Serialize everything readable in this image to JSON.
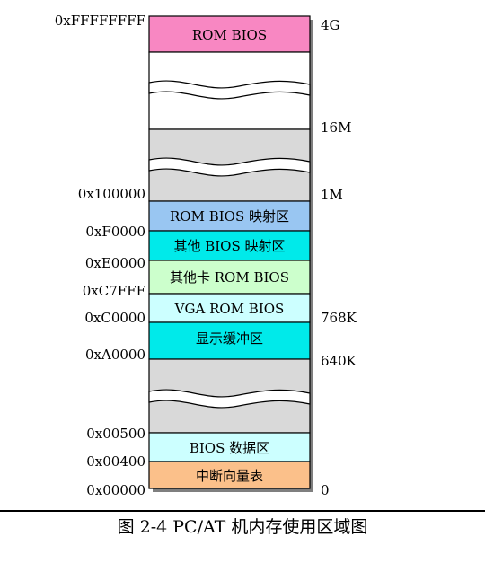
{
  "addresses": {
    "top": "0xFFFFFFFF",
    "a100000": "0x100000",
    "aF0000": "0xF0000",
    "aE0000": "0xE0000",
    "aC7FFF": "0xC7FFF",
    "aC0000": "0xC0000",
    "aA0000": "0xA0000",
    "a00500": "0x00500",
    "a00400": "0x00400",
    "a00000": "0x00000"
  },
  "sizes": {
    "s4G": "4G",
    "s16M": "16M",
    "s1M": "1M",
    "s768K": "768K",
    "s640K": "640K",
    "s0": "0"
  },
  "segments": {
    "rom_bios": "ROM BIOS",
    "rom_bios_map": "ROM BIOS 映射区",
    "other_bios_map": "其他 BIOS 映射区",
    "other_card_rom": "其他卡 ROM BIOS",
    "vga_rom": "VGA ROM BIOS",
    "display_buffer": "显示缓冲区",
    "bios_data": "BIOS 数据区",
    "ivt": "中断向量表"
  },
  "colors": {
    "rom_bios": "#f887c2",
    "rom_bios_map": "#99c6f2",
    "other_bios_map": "#00eaea",
    "other_card_rom": "#ccffcc",
    "vga_rom": "#ccffff",
    "display_buffer": "#00eaea",
    "gray": "#d9d9d9",
    "white": "#ffffff",
    "bios_data": "#ccffff",
    "ivt": "#fbc08a"
  },
  "caption": "图 2-4 PC/AT 机内存使用区域图"
}
